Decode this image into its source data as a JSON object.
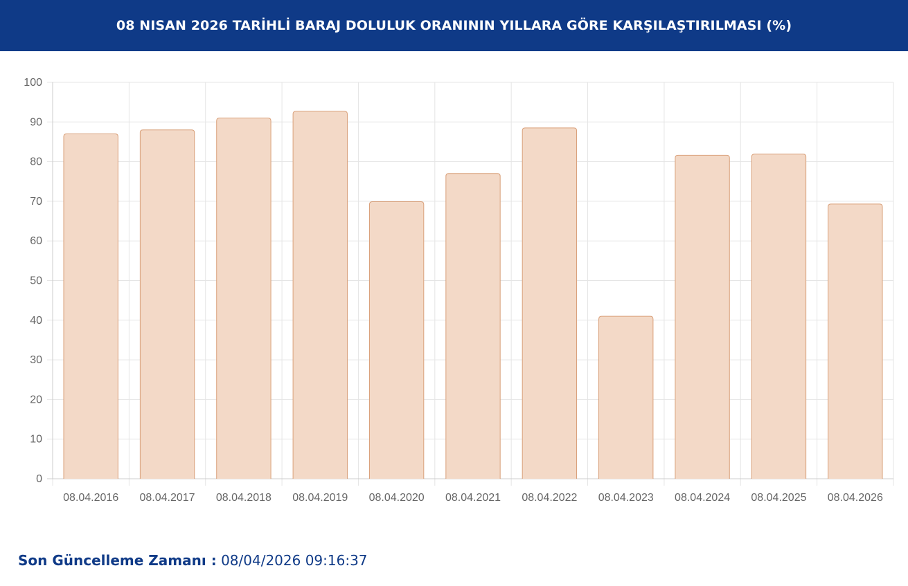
{
  "header": {
    "title": "08 NISAN 2026 TARİHLİ BARAJ DOLULUK ORANININ YILLARA GÖRE KARŞILAŞTIRILMASI (%)"
  },
  "footer": {
    "label": "Son Güncelleme Zamanı :",
    "value": "08/04/2026 09:16:37"
  },
  "colors": {
    "header_bg": "#0f3a87",
    "bar_fill": "#f3d9c7",
    "bar_stroke": "#d9a07a",
    "grid": "#e5e5e5",
    "tick_text": "#666666",
    "footer_text": "#0f3a87"
  },
  "chart_data": {
    "type": "bar",
    "title": "08 NISAN 2026 TARİHLİ BARAJ DOLULUK ORANININ YILLARA GÖRE KARŞILAŞTIRILMASI (%)",
    "categories": [
      "08.04.2016",
      "08.04.2017",
      "08.04.2018",
      "08.04.2019",
      "08.04.2020",
      "08.04.2021",
      "08.04.2022",
      "08.04.2023",
      "08.04.2024",
      "08.04.2025",
      "08.04.2026"
    ],
    "values": [
      87.0,
      88.0,
      91.0,
      92.7,
      69.9,
      77.0,
      88.5,
      41.0,
      81.6,
      81.9,
      69.3
    ],
    "xlabel": "",
    "ylabel": "",
    "ylim": [
      0,
      100
    ],
    "yticks": [
      "0",
      "10",
      "20",
      "30",
      "40",
      "50",
      "60",
      "70",
      "80",
      "90",
      "100"
    ],
    "grid": true,
    "legend": "none"
  }
}
